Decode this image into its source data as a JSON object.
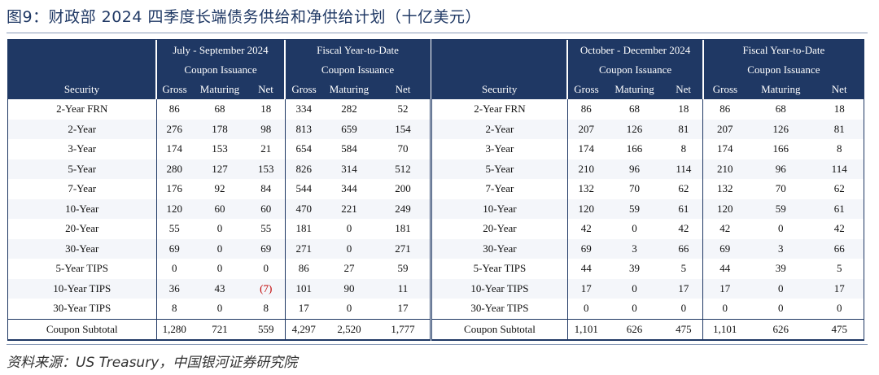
{
  "title": "图9：财政部 2024 四季度长端债务供给和净供给计划（十亿美元）",
  "source": "资料来源：US Treasury，中国银河证券研究院",
  "colors": {
    "header_bg": "#1f3864",
    "negative": "#c00000"
  },
  "left_table": {
    "security_label": "Security",
    "group1": {
      "period": "July - September 2024",
      "sub": "Coupon Issuance"
    },
    "group2": {
      "period": "Fiscal Year-to-Date",
      "sub": "Coupon Issuance"
    },
    "cols": [
      "Gross",
      "Maturing",
      "Net",
      "Gross",
      "Maturing",
      "Net"
    ],
    "rows": [
      {
        "security": "2-Year FRN",
        "v": [
          "86",
          "68",
          "18",
          "334",
          "282",
          "52"
        ]
      },
      {
        "security": "2-Year",
        "v": [
          "276",
          "178",
          "98",
          "813",
          "659",
          "154"
        ]
      },
      {
        "security": "3-Year",
        "v": [
          "174",
          "153",
          "21",
          "654",
          "584",
          "70"
        ]
      },
      {
        "security": "5-Year",
        "v": [
          "280",
          "127",
          "153",
          "826",
          "314",
          "512"
        ]
      },
      {
        "security": "7-Year",
        "v": [
          "176",
          "92",
          "84",
          "544",
          "344",
          "200"
        ]
      },
      {
        "security": "10-Year",
        "v": [
          "120",
          "60",
          "60",
          "470",
          "221",
          "249"
        ]
      },
      {
        "security": "20-Year",
        "v": [
          "55",
          "0",
          "55",
          "181",
          "0",
          "181"
        ]
      },
      {
        "security": "30-Year",
        "v": [
          "69",
          "0",
          "69",
          "271",
          "0",
          "271"
        ]
      },
      {
        "security": "5-Year TIPS",
        "v": [
          "0",
          "0",
          "0",
          "86",
          "27",
          "59"
        ]
      },
      {
        "security": "10-Year TIPS",
        "v": [
          "36",
          "43",
          "(7)",
          "101",
          "90",
          "11"
        ]
      },
      {
        "security": "30-Year TIPS",
        "v": [
          "8",
          "0",
          "8",
          "17",
          "0",
          "17"
        ]
      }
    ],
    "subtotal": {
      "security": "Coupon Subtotal",
      "v": [
        "1,280",
        "721",
        "559",
        "4,297",
        "2,520",
        "1,777"
      ]
    }
  },
  "right_table": {
    "security_label": "Security",
    "group1": {
      "period": "October - December 2024",
      "sub": "Coupon Issuance"
    },
    "group2": {
      "period": "Fiscal Year-to-Date",
      "sub": "Coupon Issuance"
    },
    "cols": [
      "Gross",
      "Maturing",
      "Net",
      "Gross",
      "Maturing",
      "Net"
    ],
    "rows": [
      {
        "security": "2-Year FRN",
        "v": [
          "86",
          "68",
          "18",
          "86",
          "68",
          "18"
        ]
      },
      {
        "security": "2-Year",
        "v": [
          "207",
          "126",
          "81",
          "207",
          "126",
          "81"
        ]
      },
      {
        "security": "3-Year",
        "v": [
          "174",
          "166",
          "8",
          "174",
          "166",
          "8"
        ]
      },
      {
        "security": "5-Year",
        "v": [
          "210",
          "96",
          "114",
          "210",
          "96",
          "114"
        ]
      },
      {
        "security": "7-Year",
        "v": [
          "132",
          "70",
          "62",
          "132",
          "70",
          "62"
        ]
      },
      {
        "security": "10-Year",
        "v": [
          "120",
          "59",
          "61",
          "120",
          "59",
          "61"
        ]
      },
      {
        "security": "20-Year",
        "v": [
          "42",
          "0",
          "42",
          "42",
          "0",
          "42"
        ]
      },
      {
        "security": "30-Year",
        "v": [
          "69",
          "3",
          "66",
          "69",
          "3",
          "66"
        ]
      },
      {
        "security": "5-Year TIPS",
        "v": [
          "44",
          "39",
          "5",
          "44",
          "39",
          "5"
        ]
      },
      {
        "security": "10-Year TIPS",
        "v": [
          "17",
          "0",
          "17",
          "17",
          "0",
          "17"
        ]
      },
      {
        "security": "30-Year TIPS",
        "v": [
          "0",
          "0",
          "0",
          "0",
          "0",
          "0"
        ]
      }
    ],
    "subtotal": {
      "security": "Coupon Subtotal",
      "v": [
        "1,101",
        "626",
        "475",
        "1,101",
        "626",
        "475"
      ]
    }
  }
}
